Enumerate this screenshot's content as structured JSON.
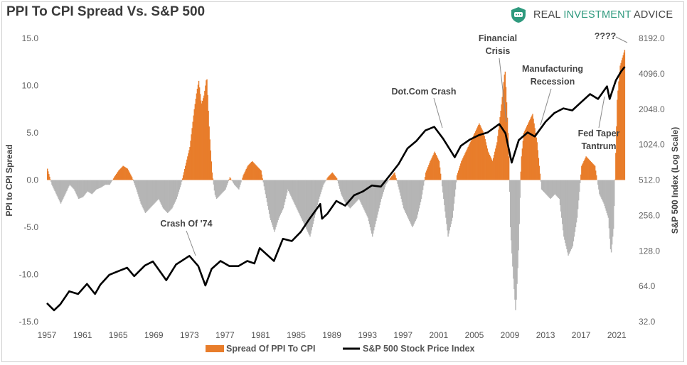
{
  "title": "PPI To CPI Spread Vs. S&P 500",
  "brand": {
    "name_part1": "REAL ",
    "name_part2": "INVESTMENT ",
    "name_part3": "ADVICE",
    "logo_icon": "shield-chat-icon",
    "accent_color": "#2f9a7e"
  },
  "chart_data": {
    "type": "bar",
    "colors": {
      "positive_spread": "#e87d2b",
      "negative_spread": "#b5b5b5",
      "sp500": "#000000"
    },
    "x_range": [
      1957,
      2022.5
    ],
    "x_ticks": [
      "1957",
      "1961",
      "1965",
      "1969",
      "1973",
      "1977",
      "1981",
      "1985",
      "1989",
      "1993",
      "1997",
      "2001",
      "2005",
      "2009",
      "2013",
      "2017",
      "2021"
    ],
    "y_left": {
      "label": "PPI to CPI Spread",
      "ylim": [
        -15,
        15
      ],
      "ticks": [
        "15.0",
        "10.0",
        "5.0",
        "0.0",
        "-5.0",
        "-10.0",
        "-15.0"
      ]
    },
    "y_right": {
      "label": "S&P 500 Index (Log Scale)",
      "scale": "log2",
      "ylim": [
        32,
        8192
      ],
      "ticks": [
        "8192.0",
        "4096.0",
        "2048.0",
        "1024.0",
        "512.0",
        "256.0",
        "128.0",
        "64.0",
        "32.0"
      ]
    },
    "legend": [
      "Spread Of PPI To CPI",
      "S&P 500 Stock Price Index"
    ],
    "legend_position": "bottom",
    "grid": false,
    "series": [
      {
        "name": "Spread Of PPI To CPI",
        "axis": "left",
        "data": [
          [
            1957.0,
            1.2
          ],
          [
            1957.5,
            -0.5
          ],
          [
            1958.0,
            -1.5
          ],
          [
            1958.5,
            -2.5
          ],
          [
            1959.0,
            -1.5
          ],
          [
            1959.5,
            -0.5
          ],
          [
            1960.0,
            -1.0
          ],
          [
            1960.5,
            -2.0
          ],
          [
            1961.0,
            -1.8
          ],
          [
            1961.5,
            -1.2
          ],
          [
            1962.0,
            -1.5
          ],
          [
            1962.5,
            -1.0
          ],
          [
            1963.0,
            -0.8
          ],
          [
            1963.5,
            -0.5
          ],
          [
            1964.0,
            -0.5
          ],
          [
            1964.5,
            0.3
          ],
          [
            1965.0,
            1.0
          ],
          [
            1965.5,
            1.5
          ],
          [
            1966.0,
            1.2
          ],
          [
            1966.5,
            0.3
          ],
          [
            1967.0,
            -1.0
          ],
          [
            1967.5,
            -2.5
          ],
          [
            1968.0,
            -3.5
          ],
          [
            1968.5,
            -3.0
          ],
          [
            1969.0,
            -2.5
          ],
          [
            1969.5,
            -2.0
          ],
          [
            1970.0,
            -3.0
          ],
          [
            1970.5,
            -3.5
          ],
          [
            1971.0,
            -3.0
          ],
          [
            1971.5,
            -2.0
          ],
          [
            1972.0,
            -0.5
          ],
          [
            1972.5,
            1.5
          ],
          [
            1973.0,
            3.5
          ],
          [
            1973.5,
            7.5
          ],
          [
            1973.8,
            9.5
          ],
          [
            1974.0,
            10.5
          ],
          [
            1974.3,
            8.0
          ],
          [
            1974.6,
            9.0
          ],
          [
            1974.9,
            11.0
          ],
          [
            1975.2,
            5.0
          ],
          [
            1975.5,
            0.8
          ],
          [
            1975.8,
            -1.5
          ],
          [
            1976.0,
            -2.0
          ],
          [
            1976.5,
            -1.5
          ],
          [
            1977.0,
            -1.0
          ],
          [
            1977.5,
            0.3
          ],
          [
            1978.0,
            -0.5
          ],
          [
            1978.5,
            -1.0
          ],
          [
            1979.0,
            0.5
          ],
          [
            1979.5,
            1.5
          ],
          [
            1980.0,
            2.0
          ],
          [
            1980.5,
            1.5
          ],
          [
            1981.0,
            1.0
          ],
          [
            1981.5,
            -1.5
          ],
          [
            1982.0,
            -4.0
          ],
          [
            1982.5,
            -5.5
          ],
          [
            1983.0,
            -4.0
          ],
          [
            1983.5,
            -3.0
          ],
          [
            1984.0,
            -1.0
          ],
          [
            1984.5,
            -2.0
          ],
          [
            1985.0,
            -3.0
          ],
          [
            1985.5,
            -4.0
          ],
          [
            1986.0,
            -5.0
          ],
          [
            1986.5,
            -6.0
          ],
          [
            1987.0,
            -4.0
          ],
          [
            1987.5,
            -2.0
          ],
          [
            1988.0,
            -0.5
          ],
          [
            1988.5,
            0.3
          ],
          [
            1989.0,
            0.8
          ],
          [
            1989.5,
            0.2
          ],
          [
            1990.0,
            -1.5
          ],
          [
            1990.5,
            -2.5
          ],
          [
            1991.0,
            -3.0
          ],
          [
            1991.5,
            -2.5
          ],
          [
            1992.0,
            -2.0
          ],
          [
            1992.5,
            -3.0
          ],
          [
            1993.0,
            -4.0
          ],
          [
            1993.5,
            -6.0
          ],
          [
            1994.0,
            -4.0
          ],
          [
            1994.5,
            -2.0
          ],
          [
            1995.0,
            -0.5
          ],
          [
            1995.5,
            0.2
          ],
          [
            1996.0,
            0.8
          ],
          [
            1996.5,
            -1.0
          ],
          [
            1997.0,
            -3.0
          ],
          [
            1997.5,
            -4.0
          ],
          [
            1998.0,
            -5.0
          ],
          [
            1998.5,
            -4.0
          ],
          [
            1999.0,
            -2.0
          ],
          [
            1999.5,
            0.8
          ],
          [
            2000.0,
            2.0
          ],
          [
            2000.5,
            3.0
          ],
          [
            2001.0,
            2.0
          ],
          [
            2001.5,
            -2.0
          ],
          [
            2002.0,
            -6.0
          ],
          [
            2002.5,
            -4.0
          ],
          [
            2003.0,
            0.5
          ],
          [
            2003.5,
            2.0
          ],
          [
            2004.0,
            3.0
          ],
          [
            2004.5,
            4.0
          ],
          [
            2005.0,
            5.0
          ],
          [
            2005.5,
            6.0
          ],
          [
            2006.0,
            5.0
          ],
          [
            2006.5,
            3.0
          ],
          [
            2007.0,
            2.0
          ],
          [
            2007.5,
            4.0
          ],
          [
            2008.0,
            8.0
          ],
          [
            2008.4,
            11.8
          ],
          [
            2008.8,
            4.0
          ],
          [
            2009.0,
            -5.0
          ],
          [
            2009.3,
            -10.0
          ],
          [
            2009.6,
            -14.0
          ],
          [
            2009.9,
            -8.0
          ],
          [
            2010.2,
            2.0
          ],
          [
            2010.5,
            5.0
          ],
          [
            2011.0,
            6.0
          ],
          [
            2011.5,
            7.0
          ],
          [
            2012.0,
            4.0
          ],
          [
            2012.5,
            -1.0
          ],
          [
            2013.0,
            -1.5
          ],
          [
            2013.5,
            -2.0
          ],
          [
            2014.0,
            -1.5
          ],
          [
            2014.5,
            -2.0
          ],
          [
            2015.0,
            -6.0
          ],
          [
            2015.5,
            -8.0
          ],
          [
            2016.0,
            -7.0
          ],
          [
            2016.5,
            -4.0
          ],
          [
            2017.0,
            1.5
          ],
          [
            2017.5,
            2.5
          ],
          [
            2018.0,
            2.0
          ],
          [
            2018.5,
            1.5
          ],
          [
            2019.0,
            -1.5
          ],
          [
            2019.5,
            -2.5
          ],
          [
            2020.0,
            -4.0
          ],
          [
            2020.3,
            -8.0
          ],
          [
            2020.6,
            -5.0
          ],
          [
            2021.0,
            8.5
          ],
          [
            2021.3,
            12.0
          ],
          [
            2021.6,
            13.0
          ],
          [
            2021.9,
            14.0
          ]
        ]
      },
      {
        "name": "S&P 500 Stock Price Index",
        "axis": "right",
        "data": [
          [
            1957.0,
            46
          ],
          [
            1957.8,
            40
          ],
          [
            1958.5,
            45
          ],
          [
            1959.5,
            58
          ],
          [
            1960.5,
            55
          ],
          [
            1961.5,
            67
          ],
          [
            1962.4,
            55
          ],
          [
            1963.0,
            66
          ],
          [
            1964.0,
            80
          ],
          [
            1965.0,
            86
          ],
          [
            1966.0,
            92
          ],
          [
            1966.8,
            78
          ],
          [
            1968.0,
            96
          ],
          [
            1968.9,
            104
          ],
          [
            1970.4,
            72
          ],
          [
            1971.5,
            98
          ],
          [
            1973.0,
            116
          ],
          [
            1974.0,
            95
          ],
          [
            1974.8,
            65
          ],
          [
            1975.5,
            90
          ],
          [
            1976.5,
            105
          ],
          [
            1977.5,
            95
          ],
          [
            1978.5,
            95
          ],
          [
            1979.5,
            105
          ],
          [
            1980.3,
            100
          ],
          [
            1980.9,
            135
          ],
          [
            1982.5,
            105
          ],
          [
            1983.5,
            162
          ],
          [
            1984.5,
            155
          ],
          [
            1985.5,
            185
          ],
          [
            1986.5,
            240
          ],
          [
            1987.7,
            320
          ],
          [
            1987.9,
            240
          ],
          [
            1988.5,
            265
          ],
          [
            1989.5,
            340
          ],
          [
            1990.5,
            310
          ],
          [
            1991.5,
            380
          ],
          [
            1992.5,
            410
          ],
          [
            1993.5,
            460
          ],
          [
            1994.5,
            450
          ],
          [
            1995.5,
            560
          ],
          [
            1996.5,
            700
          ],
          [
            1997.5,
            950
          ],
          [
            1998.5,
            1100
          ],
          [
            1999.5,
            1350
          ],
          [
            2000.5,
            1450
          ],
          [
            2001.5,
            1150
          ],
          [
            2002.8,
            800
          ],
          [
            2003.5,
            1000
          ],
          [
            2004.5,
            1130
          ],
          [
            2005.5,
            1230
          ],
          [
            2006.5,
            1300
          ],
          [
            2007.8,
            1530
          ],
          [
            2008.5,
            1280
          ],
          [
            2009.2,
            720
          ],
          [
            2010.0,
            1120
          ],
          [
            2011.0,
            1300
          ],
          [
            2011.8,
            1200
          ],
          [
            2013.0,
            1600
          ],
          [
            2014.0,
            1900
          ],
          [
            2015.0,
            2080
          ],
          [
            2016.0,
            2000
          ],
          [
            2017.0,
            2350
          ],
          [
            2018.0,
            2750
          ],
          [
            2018.9,
            2500
          ],
          [
            2019.9,
            3200
          ],
          [
            2020.2,
            2500
          ],
          [
            2020.9,
            3600
          ],
          [
            2021.5,
            4300
          ],
          [
            2021.9,
            4700
          ]
        ]
      }
    ],
    "annotations": [
      {
        "text": "Crash Of '74"
      },
      {
        "text": "Dot.Com Crash"
      },
      {
        "text": "Financial Crisis",
        "lines": [
          "Financial",
          "Crisis"
        ]
      },
      {
        "text": "Manufacturing Recession",
        "lines": [
          "Manufacturing",
          "Recession"
        ]
      },
      {
        "text": "Fed Taper Tantrum",
        "lines": [
          "Fed Taper",
          "Tantrum"
        ]
      },
      {
        "text": "????"
      }
    ]
  }
}
